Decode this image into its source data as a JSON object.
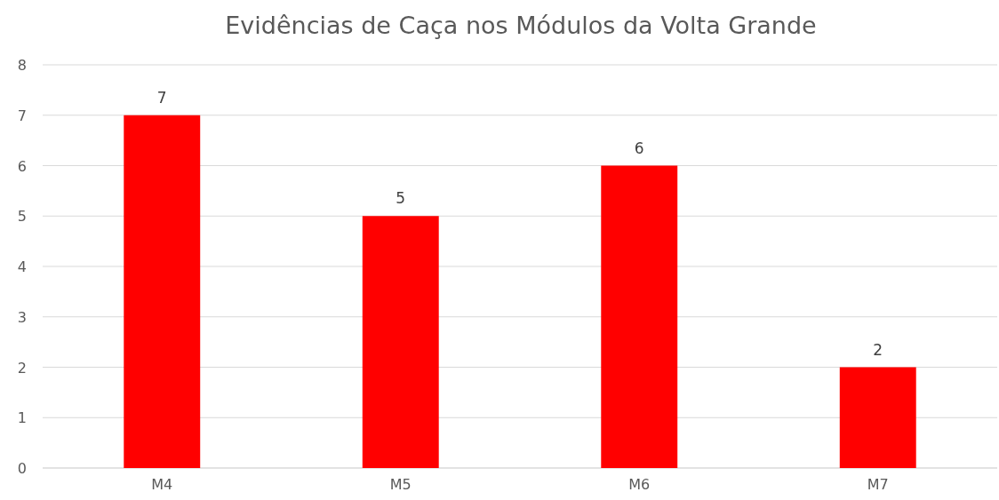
{
  "chart_data": {
    "type": "bar",
    "title": "Evidências de Caça nos Módulos da Volta Grande",
    "categories": [
      "M4",
      "M5",
      "M6",
      "M7"
    ],
    "values": [
      7,
      5,
      6,
      2
    ],
    "color": "#ff0000",
    "ylim": [
      0,
      8
    ],
    "yticks": [
      0,
      1,
      2,
      3,
      4,
      5,
      6,
      7,
      8
    ],
    "grid": "y",
    "data_labels": true
  }
}
